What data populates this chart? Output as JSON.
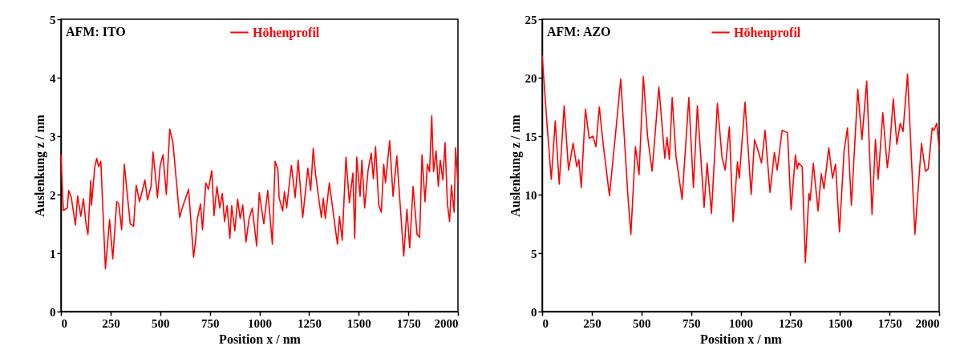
{
  "chart_data": [
    {
      "type": "line",
      "xlabel": "Position x / nm",
      "ylabel": "Auslenkung z / nm",
      "annotations": [
        "AFM: ITO"
      ],
      "xlim": [
        0,
        2000
      ],
      "ylim": [
        0,
        5
      ],
      "xticks": [
        0,
        250,
        500,
        750,
        1000,
        1250,
        1500,
        1750,
        2000
      ],
      "yticks": [
        0,
        1,
        2,
        3,
        4,
        5
      ],
      "grid": false,
      "legend": "top",
      "marker": "none",
      "line_style": "solid",
      "x": [
        0,
        12,
        32,
        39,
        52,
        73,
        84,
        100,
        113,
        127,
        136,
        150,
        154,
        170,
        180,
        190,
        201,
        224,
        245,
        261,
        281,
        291,
        306,
        319,
        349,
        366,
        379,
        396,
        423,
        436,
        454,
        464,
        474,
        486,
        500,
        514,
        531,
        548,
        564,
        598,
        611,
        643,
        668,
        679,
        686,
        703,
        713,
        730,
        743,
        760,
        771,
        786,
        800,
        813,
        824,
        837,
        851,
        860,
        876,
        890,
        903,
        916,
        932,
        948,
        964,
        986,
        999,
        1022,
        1042,
        1065,
        1079,
        1093,
        1099,
        1117,
        1126,
        1137,
        1161,
        1180,
        1195,
        1218,
        1244,
        1258,
        1271,
        1282,
        1301,
        1312,
        1322,
        1332,
        1352,
        1368,
        1393,
        1403,
        1417,
        1436,
        1453,
        1471,
        1480,
        1490,
        1507,
        1516,
        1530,
        1547,
        1563,
        1574,
        1585,
        1601,
        1614,
        1626,
        1635,
        1656,
        1673,
        1692,
        1705,
        1727,
        1743,
        1757,
        1774,
        1794,
        1807,
        1819,
        1834,
        1846,
        1857,
        1868,
        1877,
        1890,
        1901,
        1911,
        1924,
        1935,
        1947,
        1958,
        1967,
        1981,
        1988,
        2000
      ],
      "series": [
        {
          "name": "Höhenprofil",
          "color": "#ff0000",
          "values": [
            2.68,
            1.73,
            1.77,
            2.07,
            1.95,
            1.48,
            1.98,
            1.63,
            1.93,
            1.48,
            1.32,
            2.24,
            1.82,
            2.46,
            2.62,
            2.48,
            2.57,
            0.73,
            1.57,
            0.9,
            1.88,
            1.84,
            1.4,
            2.52,
            1.5,
            1.46,
            2.16,
            1.88,
            2.25,
            1.91,
            2.14,
            2.73,
            2.39,
            1.95,
            2.5,
            2.68,
            2.0,
            3.12,
            2.89,
            1.61,
            1.77,
            2.09,
            0.93,
            1.23,
            1.56,
            1.84,
            1.4,
            2.2,
            2.09,
            2.41,
            1.64,
            2.14,
            1.77,
            2.02,
            1.54,
            1.81,
            1.25,
            1.81,
            1.38,
            1.92,
            1.59,
            1.82,
            1.19,
            1.59,
            1.77,
            1.12,
            2.03,
            1.5,
            2.07,
            1.15,
            2.57,
            2.43,
            1.95,
            1.72,
            2.05,
            1.77,
            2.5,
            1.95,
            2.59,
            1.61,
            2.45,
            2.07,
            2.79,
            2.37,
            1.88,
            1.61,
            1.94,
            1.59,
            2.2,
            1.79,
            1.15,
            1.63,
            1.22,
            2.64,
            1.86,
            2.37,
            1.25,
            2.64,
            1.97,
            2.59,
            1.77,
            2.41,
            2.71,
            2.27,
            2.82,
            1.82,
            1.7,
            2.52,
            2.2,
            2.92,
            1.97,
            2.66,
            2.02,
            0.95,
            1.75,
            1.09,
            2.14,
            1.32,
            1.27,
            2.68,
            1.88,
            2.52,
            2.39,
            3.35,
            2.39,
            2.75,
            2.14,
            2.59,
            2.25,
            2.89,
            1.84,
            1.54,
            2.16,
            1.7,
            2.8,
            2.2
          ]
        }
      ]
    },
    {
      "type": "line",
      "xlabel": "Position x / nm",
      "ylabel": "Auslenkung z / nm",
      "annotations": [
        "AFM: AZO"
      ],
      "xlim": [
        0,
        2000
      ],
      "ylim": [
        0,
        25
      ],
      "xticks": [
        0,
        250,
        500,
        750,
        1000,
        1250,
        1500,
        1750,
        2000
      ],
      "yticks": [
        0,
        5,
        10,
        15,
        20,
        25
      ],
      "grid": false,
      "legend": "top",
      "marker": "none",
      "line_style": "solid",
      "x": [
        0,
        26,
        46,
        66,
        86,
        111,
        133,
        156,
        174,
        185,
        197,
        218,
        237,
        256,
        271,
        288,
        309,
        339,
        376,
        396,
        432,
        447,
        470,
        488,
        510,
        531,
        554,
        588,
        618,
        629,
        641,
        655,
        674,
        705,
        739,
        762,
        782,
        816,
        831,
        853,
        883,
        906,
        922,
        943,
        962,
        984,
        993,
        1022,
        1053,
        1070,
        1087,
        1105,
        1123,
        1148,
        1170,
        1184,
        1209,
        1236,
        1254,
        1276,
        1285,
        1292,
        1310,
        1326,
        1344,
        1350,
        1366,
        1390,
        1406,
        1420,
        1444,
        1463,
        1478,
        1498,
        1521,
        1538,
        1558,
        1590,
        1611,
        1635,
        1662,
        1679,
        1693,
        1716,
        1739,
        1750,
        1769,
        1787,
        1804,
        1818,
        1841,
        1878,
        1911,
        1931,
        1945,
        1965,
        1974,
        1988,
        2000
      ],
      "series": [
        {
          "name": "Höhenprofil",
          "color": "#ff0000",
          "values": [
            21.9,
            15.7,
            11.3,
            16.3,
            10.9,
            17.6,
            12.1,
            14.4,
            12.4,
            13.0,
            10.6,
            17.3,
            14.8,
            15.0,
            14.1,
            17.5,
            14.1,
            9.9,
            16.3,
            19.9,
            9.9,
            6.6,
            14.1,
            11.7,
            20.1,
            15.0,
            12.0,
            19.2,
            13.1,
            14.9,
            13.0,
            18.3,
            13.3,
            9.6,
            18.3,
            10.6,
            17.6,
            8.9,
            12.7,
            8.4,
            17.8,
            13.2,
            12.1,
            15.8,
            7.7,
            12.8,
            11.4,
            17.9,
            10.0,
            14.7,
            13.8,
            12.7,
            15.5,
            10.2,
            13.6,
            12.1,
            15.5,
            15.3,
            8.7,
            13.4,
            12.2,
            12.7,
            12.4,
            4.2,
            10.1,
            9.5,
            12.7,
            8.6,
            11.8,
            10.5,
            14.0,
            11.4,
            12.6,
            6.8,
            13.7,
            15.7,
            9.1,
            19.0,
            14.7,
            19.7,
            8.3,
            14.7,
            11.3,
            17.0,
            12.3,
            13.9,
            18.2,
            14.3,
            16.1,
            15.4,
            20.3,
            6.6,
            14.4,
            12.0,
            12.2,
            15.7,
            15.5,
            16.1,
            13.9
          ]
        }
      ]
    }
  ]
}
